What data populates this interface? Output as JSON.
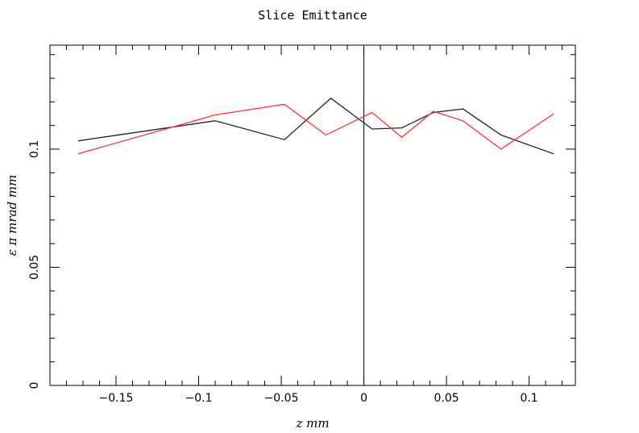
{
  "chart_data": {
    "type": "line",
    "title": "Slice Emittance",
    "xlabel": "z mm",
    "ylabel": "ε π mrad mm",
    "xlim": [
      -0.19,
      0.128
    ],
    "ylim": [
      0,
      0.144
    ],
    "x_ticks": [
      {
        "v": -0.15,
        "label": "−0.15"
      },
      {
        "v": -0.1,
        "label": "−0.1"
      },
      {
        "v": -0.05,
        "label": "−0.05"
      },
      {
        "v": 0,
        "label": "0"
      },
      {
        "v": 0.05,
        "label": "0.05"
      },
      {
        "v": 0.1,
        "label": "0.1"
      }
    ],
    "y_ticks": [
      {
        "v": 0,
        "label": "0"
      },
      {
        "v": 0.05,
        "label": "0.05"
      },
      {
        "v": 0.1,
        "label": "0.1"
      }
    ],
    "grid": false,
    "series": [
      {
        "color": "#222222",
        "x": [
          -0.173,
          -0.09,
          -0.048,
          -0.02,
          0.005,
          0.023,
          0.042,
          0.06,
          0.083,
          0.115
        ],
        "y": [
          0.1035,
          0.112,
          0.104,
          0.1215,
          0.1085,
          0.109,
          0.1155,
          0.117,
          0.106,
          0.098
        ]
      },
      {
        "color": "#ff3333",
        "x": [
          -0.173,
          -0.09,
          -0.048,
          -0.023,
          0.005,
          0.023,
          0.042,
          0.06,
          0.083,
          0.115
        ],
        "y": [
          0.098,
          0.1145,
          0.119,
          0.106,
          0.1155,
          0.105,
          0.116,
          0.112,
          0.1,
          0.115
        ]
      }
    ]
  }
}
